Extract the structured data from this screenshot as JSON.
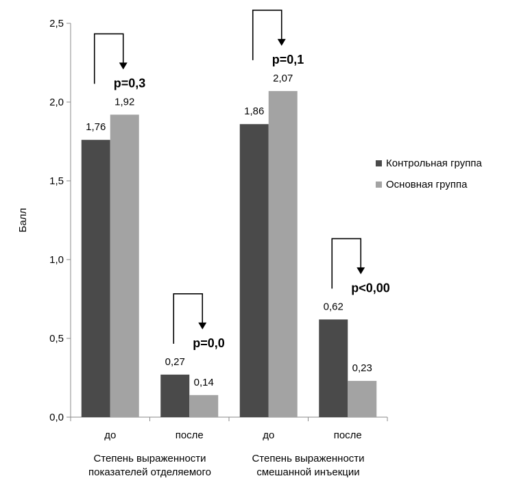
{
  "chart_data": {
    "type": "bar",
    "ylabel": "Балл",
    "ylim": [
      0,
      2.5
    ],
    "yticks": [
      "0,0",
      "0,5",
      "1,0",
      "1,5",
      "2,0",
      "2,5"
    ],
    "grid": false,
    "legend_position": "right",
    "colors": {
      "control": "#4a4a4a",
      "main": "#a3a3a3"
    },
    "categories": [
      "до",
      "после",
      "до",
      "после"
    ],
    "group_labels": [
      [
        "Степень выраженности",
        "показателей отделяемого"
      ],
      [
        "Степень выраженности",
        "смешанной инъекции"
      ]
    ],
    "series": [
      {
        "name": "Контрольная группа",
        "values": [
          1.76,
          0.27,
          1.86,
          0.62
        ],
        "labels": [
          "1,76",
          "0,27",
          "1,86",
          "0,62"
        ]
      },
      {
        "name": "Основная группа",
        "values": [
          1.92,
          0.14,
          2.07,
          0.23
        ],
        "labels": [
          "1,92",
          "0,14",
          "2,07",
          "0,23"
        ]
      }
    ],
    "annotations": [
      "p=0,3",
      "p=0,0",
      "p=0,1",
      "p<0,00"
    ]
  }
}
